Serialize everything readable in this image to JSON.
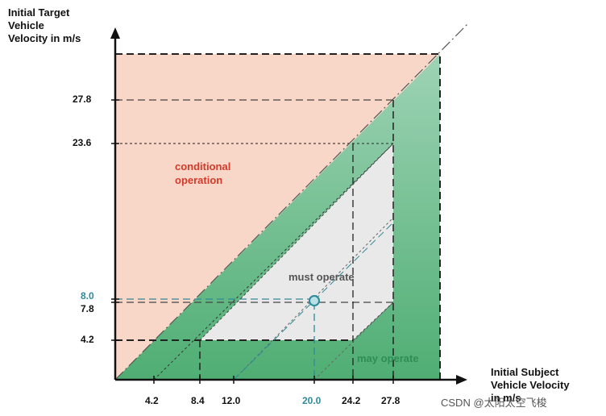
{
  "y_axis_title": [
    "Initial Target",
    "Vehicle",
    "Velocity in m/s"
  ],
  "x_axis_title": [
    "Initial Subject",
    "Vehicle Velocity",
    "in m/s"
  ],
  "y_ticks": [
    "27.8",
    "23.6",
    "8.0",
    "7.8",
    "4.2"
  ],
  "x_ticks": [
    "4.2",
    "8.4",
    "12.0",
    "20.0",
    "24.2",
    "27.8"
  ],
  "regions": {
    "conditional": [
      "conditional",
      "operation"
    ],
    "must": "must operate",
    "may": "may operate"
  },
  "watermark": "CSDN @太阳太空飞梭",
  "colors": {
    "conditional_fill": "#f9d7c8",
    "may_fill": "#59b37a",
    "must_fill": "#e6e6e6",
    "conditional_text": "#d23a2a",
    "may_text": "#2f8e55",
    "must_text": "#555555",
    "highlight": "#2e8a9a"
  }
}
